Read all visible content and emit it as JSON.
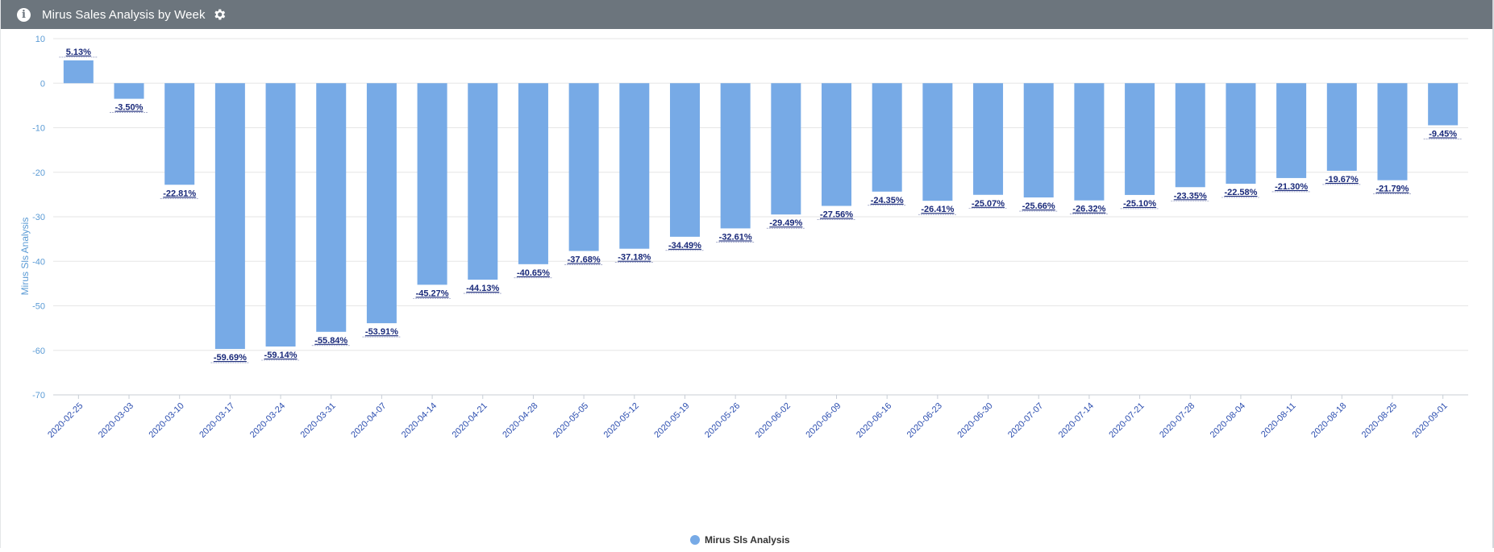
{
  "header": {
    "title": "Mirus Sales Analysis by Week",
    "info_icon": "info-circle-icon",
    "settings_icon": "gear-icon",
    "background": "#6c757d"
  },
  "chart_data": {
    "type": "bar",
    "title": "Mirus Sales Analysis by Week",
    "xlabel": "",
    "ylabel": "Mirus Sls Analysis",
    "ylim": [
      -70,
      10
    ],
    "yticks": [
      10,
      0,
      -10,
      -20,
      -30,
      -40,
      -50,
      -60,
      -70
    ],
    "grid": true,
    "legend_position": "bottom-center",
    "bar_color": "#77aae6",
    "label_color": "#1a2a7a",
    "categories": [
      "2020-02-25",
      "2020-03-03",
      "2020-03-10",
      "2020-03-17",
      "2020-03-24",
      "2020-03-31",
      "2020-04-07",
      "2020-04-14",
      "2020-04-21",
      "2020-04-28",
      "2020-05-05",
      "2020-05-12",
      "2020-05-19",
      "2020-05-26",
      "2020-06-02",
      "2020-06-09",
      "2020-06-16",
      "2020-06-23",
      "2020-06-30",
      "2020-07-07",
      "2020-07-14",
      "2020-07-21",
      "2020-07-28",
      "2020-08-04",
      "2020-08-11",
      "2020-08-18",
      "2020-08-25",
      "2020-09-01"
    ],
    "series": [
      {
        "name": "Mirus Sls Analysis",
        "values": [
          5.13,
          -3.5,
          -22.81,
          -59.69,
          -59.14,
          -55.84,
          -53.91,
          -45.27,
          -44.13,
          -40.65,
          -37.68,
          -37.18,
          -34.49,
          -32.61,
          -29.49,
          -27.56,
          -24.35,
          -26.41,
          -25.07,
          -25.66,
          -26.32,
          -25.1,
          -23.35,
          -22.58,
          -21.3,
          -19.67,
          -21.79,
          -9.45
        ],
        "labels": [
          "5.13%",
          "-3.50%",
          "-22.81%",
          "-59.69%",
          "-59.14%",
          "-55.84%",
          "-53.91%",
          "-45.27%",
          "-44.13%",
          "-40.65%",
          "-37.68%",
          "-37.18%",
          "-34.49%",
          "-32.61%",
          "-29.49%",
          "-27.56%",
          "-24.35%",
          "-26.41%",
          "-25.07%",
          "-25.66%",
          "-26.32%",
          "-25.10%",
          "-23.35%",
          "-22.58%",
          "-21.30%",
          "-19.67%",
          "-21.79%",
          "-9.45%"
        ]
      }
    ]
  }
}
